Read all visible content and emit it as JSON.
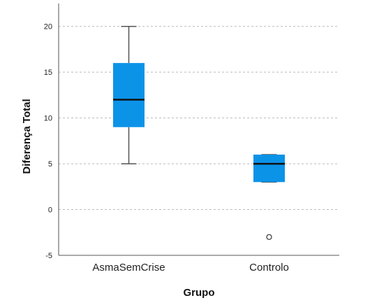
{
  "chart_data": {
    "type": "boxplot",
    "xlabel": "Grupo",
    "ylabel": "Diferença Total",
    "ylim": [
      -5,
      22.5
    ],
    "yticks": [
      -5,
      0,
      5,
      10,
      15,
      20
    ],
    "grid": "horizontal-dashed",
    "categories": [
      "AsmaSemCrise",
      "Controlo"
    ],
    "boxes": [
      {
        "category": "AsmaSemCrise",
        "whisker_low": 5,
        "q1": 9,
        "median": 12,
        "q3": 16,
        "whisker_high": 20,
        "outliers": []
      },
      {
        "category": "Controlo",
        "whisker_low": 3,
        "q1": 3,
        "median": 5,
        "q3": 6,
        "whisker_high": 6,
        "outliers": [
          -3
        ]
      }
    ],
    "colors": {
      "box": "#0B93E8",
      "median": "#111111",
      "whisker": "#555555",
      "grid": "#BBBBBB",
      "axis": "#555555"
    }
  }
}
